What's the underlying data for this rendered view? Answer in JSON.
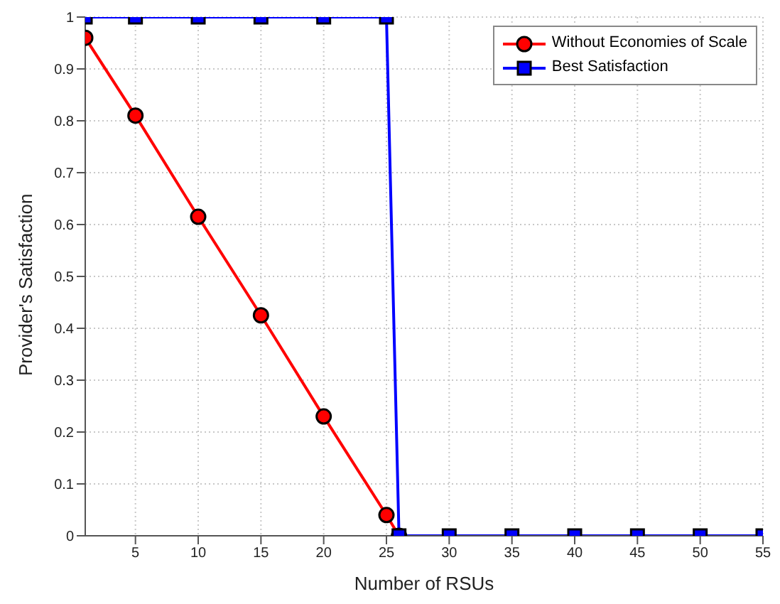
{
  "chart_data": {
    "type": "line",
    "xlabel": "Number of RSUs",
    "ylabel": "Provider's Satisfaction",
    "series": [
      {
        "name": "Without Economies of Scale",
        "color": "#ff0000",
        "marker": "circle",
        "x": [
          1,
          5,
          10,
          15,
          20,
          25,
          26
        ],
        "values": [
          0.96,
          0.81,
          0.615,
          0.425,
          0.23,
          0.04,
          0
        ]
      },
      {
        "name": "Best Satisfaction",
        "color": "#0000ff",
        "marker": "square",
        "x": [
          1,
          5,
          10,
          15,
          20,
          25,
          26,
          30,
          35,
          40,
          45,
          50,
          55
        ],
        "values": [
          1,
          1,
          1,
          1,
          1,
          1,
          0,
          0,
          0,
          0,
          0,
          0,
          0
        ]
      }
    ],
    "xlim": [
      1,
      55
    ],
    "xticks": [
      5,
      10,
      15,
      20,
      25,
      30,
      35,
      40,
      45,
      50,
      55
    ],
    "ylim": [
      0,
      1
    ],
    "yticks": [
      0,
      0.1,
      0.2,
      0.3,
      0.4,
      0.5,
      0.6,
      0.7,
      0.8,
      0.9,
      1
    ],
    "grid": true,
    "legend": "top right"
  }
}
